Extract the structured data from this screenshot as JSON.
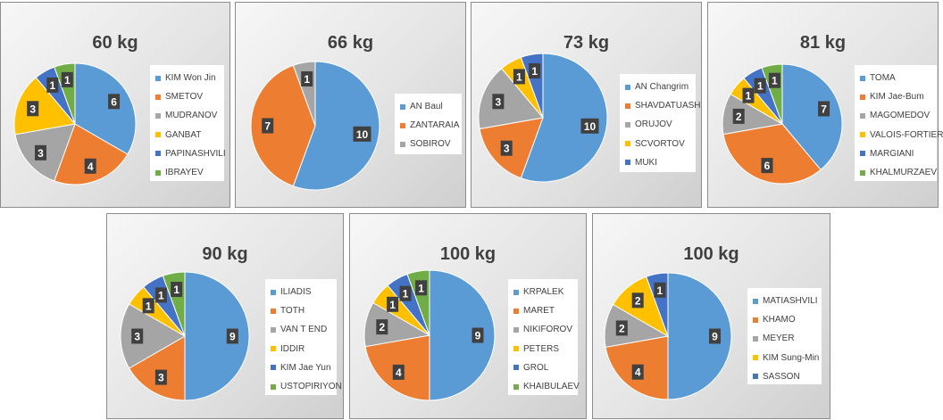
{
  "colors": [
    "#5b9bd5",
    "#ed7d31",
    "#a5a5a5",
    "#ffc000",
    "#4472c4",
    "#70ad47"
  ],
  "chart_data": [
    {
      "type": "pie",
      "title": "60 kg",
      "categories": [
        "KIM Won Jin",
        "SMETOV",
        "MUDRANOV",
        "GANBAT",
        "PAPINASHVILI",
        "IBRAYEV"
      ],
      "values": [
        6,
        4,
        3,
        3,
        1,
        1
      ],
      "legend": "right"
    },
    {
      "type": "pie",
      "title": "66 kg",
      "categories": [
        "AN Baul",
        "ZANTARAIA",
        "SOBIROV"
      ],
      "values": [
        10,
        7,
        1
      ],
      "legend": "right"
    },
    {
      "type": "pie",
      "title": "73 kg",
      "categories": [
        "AN Changrim",
        "SHAVDATUASH",
        "ORUJOV",
        "SCVORTOV",
        "MUKI"
      ],
      "values": [
        10,
        3,
        3,
        1,
        1
      ],
      "legend": "right"
    },
    {
      "type": "pie",
      "title": "81 kg",
      "categories": [
        "TOMA",
        "KIM Jae-Bum",
        "MAGOMEDOV",
        "VALOIS-FORTIER",
        "MARGIANI",
        "KHALMURZAEV"
      ],
      "values": [
        7,
        6,
        2,
        1,
        1,
        1
      ],
      "legend": "right"
    },
    {
      "type": "pie",
      "title": "90 kg",
      "categories": [
        "ILIADIS",
        "TOTH",
        "VAN T END",
        "IDDIR",
        "KIM Jae Yun",
        "USTOPIRIYON"
      ],
      "values": [
        9,
        3,
        3,
        1,
        1,
        1
      ],
      "legend": "right"
    },
    {
      "type": "pie",
      "title": "100 kg",
      "categories": [
        "KRPALEK",
        "MARET",
        "NIKIFOROV",
        "PETERS",
        "GROL",
        "KHAIBULAEV"
      ],
      "values": [
        9,
        4,
        2,
        1,
        1,
        1
      ],
      "legend": "right"
    },
    {
      "type": "pie",
      "title": "100 kg",
      "categories": [
        "MATIASHVILI",
        "KHAMO",
        "MEYER",
        "KIM Sung-Min",
        "SASSON"
      ],
      "values": [
        9,
        4,
        2,
        2,
        1
      ],
      "legend": "right"
    }
  ]
}
